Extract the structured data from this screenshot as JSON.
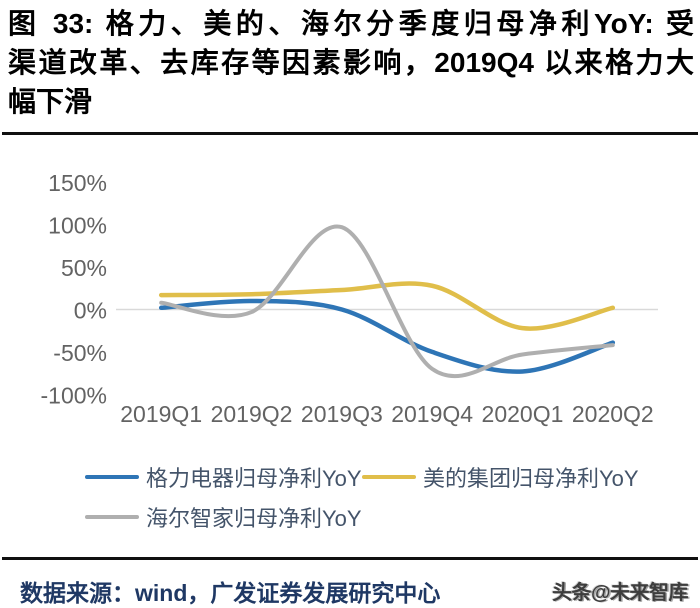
{
  "title": {
    "line1": "图 33: 格力、美的、海尔分季度归母净利YoY:  受",
    "line2": "渠道改革、去库存等因素影响，2019Q4 以来格力大",
    "line3": "幅下滑"
  },
  "chart_data": {
    "type": "line",
    "smoothed": true,
    "categories": [
      "2019Q1",
      "2019Q2",
      "2019Q3",
      "2019Q4",
      "2020Q1",
      "2020Q2"
    ],
    "series": [
      {
        "name": "格力电器归母净利YoY",
        "color": "#2E75B6",
        "values": [
          2,
          10,
          0,
          -50,
          -73,
          -39
        ]
      },
      {
        "name": "美的集团归母净利YoY",
        "color": "#E0BE4A",
        "values": [
          17,
          18,
          23,
          28,
          -22,
          2
        ]
      },
      {
        "name": "海尔智家归母净利YoY",
        "color": "#AFAFAF",
        "values": [
          8,
          -3,
          97,
          -70,
          -53,
          -42
        ]
      }
    ],
    "y_ticks": [
      {
        "label": "150%",
        "value": 150
      },
      {
        "label": "100%",
        "value": 100
      },
      {
        "label": "50%",
        "value": 50
      },
      {
        "label": "0%",
        "value": 0
      },
      {
        "label": "-50%",
        "value": -50
      },
      {
        "label": "-100%",
        "value": -100
      }
    ],
    "ylim": [
      -125,
      175
    ],
    "xlabel": "",
    "ylabel": "",
    "grid": "zero-line-only",
    "legend_position": "bottom"
  },
  "footer": {
    "source": "数据来源：wind，广发证券发展研究中心",
    "watermark": "头条@未来智库"
  },
  "colors": {
    "axis_text": "#636363",
    "gridline": "#D9D9D9",
    "rule": "#101010",
    "title_text": "#000000",
    "legend_text": "#44546A",
    "footer_text": "#1F3864"
  }
}
